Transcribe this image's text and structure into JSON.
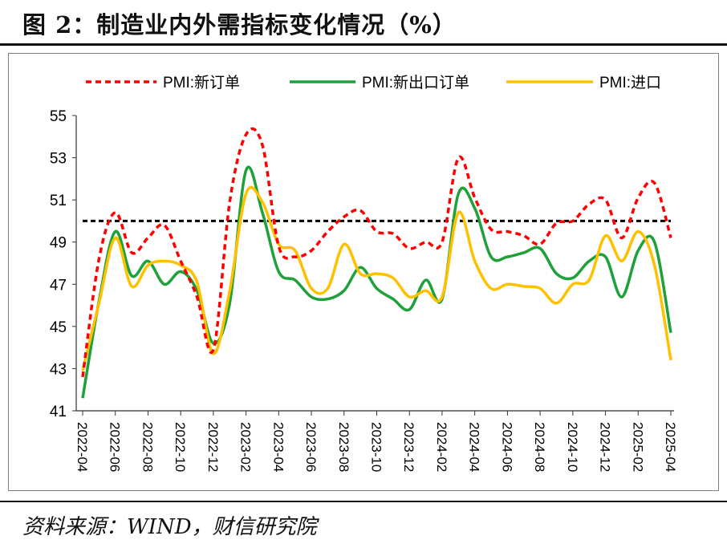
{
  "title": "图 2：制造业内外需指标变化情况（%）",
  "source": "资料来源：WIND，财信研究院",
  "chart_data": {
    "type": "line",
    "ylim": [
      41,
      55
    ],
    "yticks": [
      41,
      43,
      45,
      47,
      49,
      51,
      53,
      55
    ],
    "x": [
      "2022-04",
      "2022-05",
      "2022-06",
      "2022-07",
      "2022-08",
      "2022-09",
      "2022-10",
      "2022-11",
      "2022-12",
      "2023-01",
      "2023-02",
      "2023-03",
      "2023-04",
      "2023-05",
      "2023-06",
      "2023-07",
      "2023-08",
      "2023-09",
      "2023-10",
      "2023-11",
      "2023-12",
      "2024-01",
      "2024-02",
      "2024-03",
      "2024-04",
      "2024-05",
      "2024-06",
      "2024-07",
      "2024-08",
      "2024-09",
      "2024-10",
      "2024-11",
      "2024-12",
      "2025-01",
      "2025-02",
      "2025-03",
      "2025-04"
    ],
    "xtick_labels": [
      "2022-04",
      "2022-06",
      "2022-08",
      "2022-10",
      "2022-12",
      "2023-02",
      "2023-04",
      "2023-06",
      "2023-08",
      "2023-10",
      "2023-12",
      "2024-02",
      "2024-04",
      "2024-06",
      "2024-08",
      "2024-10",
      "2024-12",
      "2025-02",
      "2025-04"
    ],
    "legend_position": "top",
    "reference_line": {
      "value": 50,
      "color": "#000000",
      "style": "dashed"
    },
    "series": [
      {
        "name": "PMI:新订单",
        "color": "#ff0000",
        "style": "dashed",
        "values": [
          42.6,
          48.2,
          50.4,
          48.5,
          49.2,
          49.8,
          48.1,
          46.4,
          43.9,
          50.9,
          54.1,
          53.6,
          48.8,
          48.3,
          48.6,
          49.5,
          50.2,
          50.5,
          49.5,
          49.4,
          48.7,
          49.0,
          49.0,
          53.0,
          51.1,
          49.6,
          49.5,
          49.3,
          48.9,
          49.9,
          50.0,
          50.8,
          51.0,
          49.2,
          51.1,
          51.8,
          49.2
        ]
      },
      {
        "name": "PMI:新出口订单",
        "color": "#1ea03a",
        "style": "solid",
        "values": [
          41.6,
          46.2,
          49.5,
          47.4,
          48.1,
          47.0,
          47.6,
          46.7,
          44.2,
          46.1,
          52.4,
          50.4,
          47.6,
          47.2,
          46.4,
          46.3,
          46.7,
          47.8,
          46.8,
          46.3,
          45.8,
          47.2,
          46.3,
          51.3,
          50.6,
          48.3,
          48.3,
          48.5,
          48.7,
          47.5,
          47.3,
          48.1,
          48.3,
          46.4,
          48.6,
          49.0,
          44.7
        ]
      },
      {
        "name": "PMI:进口",
        "color": "#ffc000",
        "style": "solid",
        "values": [
          42.9,
          46.1,
          49.2,
          46.9,
          47.9,
          48.1,
          47.9,
          47.1,
          43.7,
          46.7,
          51.3,
          50.9,
          48.9,
          48.6,
          46.8,
          46.8,
          48.9,
          47.5,
          47.5,
          47.3,
          46.4,
          46.7,
          46.4,
          50.4,
          48.1,
          46.8,
          47.0,
          46.9,
          46.8,
          46.1,
          47.0,
          47.2,
          49.3,
          48.1,
          49.5,
          47.9,
          43.4
        ]
      }
    ]
  }
}
